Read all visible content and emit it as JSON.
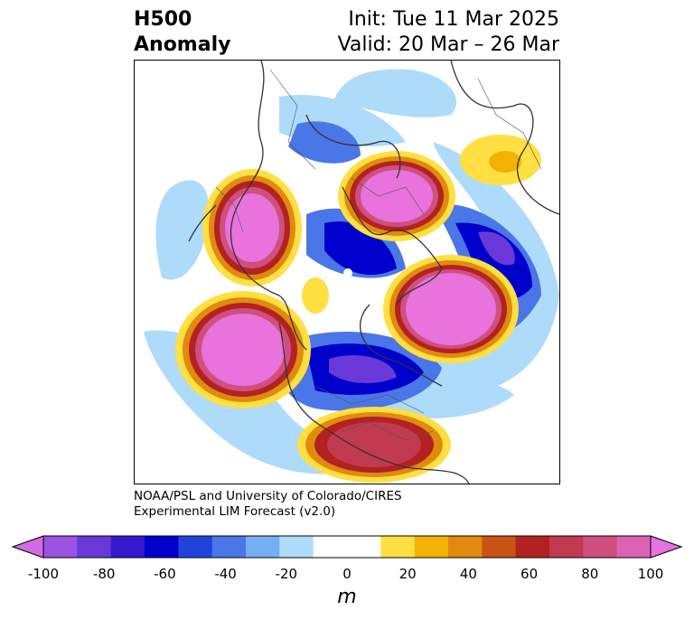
{
  "header": {
    "title_line1": "H500",
    "title_line2": "Anomaly",
    "init": "Init: Tue 11 Mar 2025",
    "valid": "Valid: 20 Mar – 26 Mar"
  },
  "credit": {
    "line1": "NOAA/PSL and University of Colorado/CIRES",
    "line2": "Experimental LIM Forecast (v2.0)"
  },
  "colorbar": {
    "unit": "m",
    "ticks": [
      "-100",
      "-80",
      "-60",
      "-40",
      "-20",
      "0",
      "20",
      "40",
      "60",
      "80",
      "100"
    ],
    "colors": [
      "#d36be3",
      "#9b52e0",
      "#6a38d8",
      "#3519cf",
      "#0000cc",
      "#2143dc",
      "#4a76e8",
      "#76aef2",
      "#aedbfa",
      "#ffffff",
      "#ffffff",
      "#ffdf42",
      "#f2b300",
      "#e08a0e",
      "#c95313",
      "#b22222",
      "#c23a50",
      "#cf4f7f",
      "#dc62b6",
      "#e972dc"
    ]
  }
}
